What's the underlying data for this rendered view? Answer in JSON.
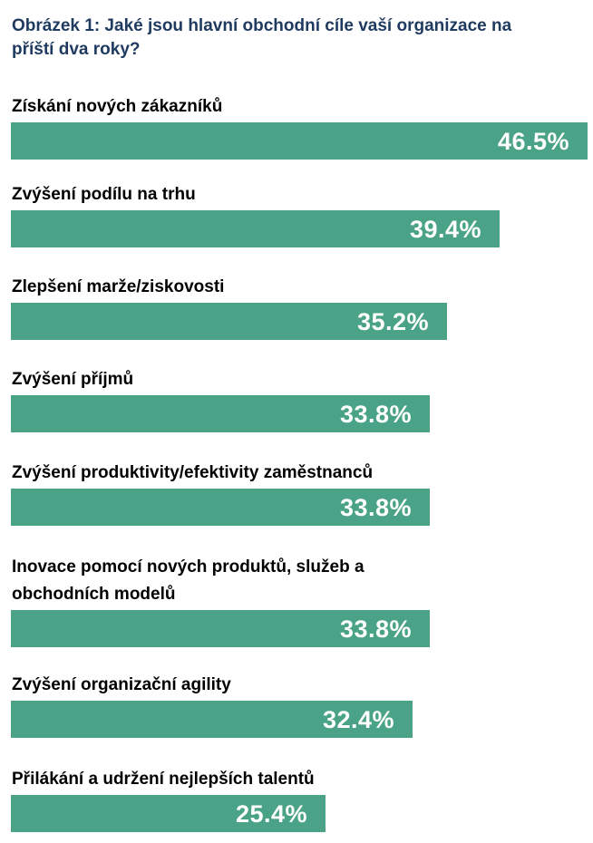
{
  "chart_data": {
    "type": "bar",
    "orientation": "horizontal",
    "title": "Obrázek 1: Jaké jsou hlavní obchodní cíle vaší organizace na příští dva roky?",
    "categories": [
      "Získání nových zákazníků",
      "Zvýšení podílu na trhu",
      "Zlepšení marže/ziskovosti",
      "Zvýšení příjmů",
      "Zvýšení produktivity/efektivity zaměstnanců",
      "Inovace pomocí nových produktů, služeb a obchodních modelů",
      "Zvýšení organizační agility",
      "Přilákání a udržení nejlepších talentů"
    ],
    "values": [
      46.5,
      39.4,
      35.2,
      33.8,
      33.8,
      33.8,
      32.4,
      25.4
    ],
    "value_labels": [
      "46.5%",
      "39.4%",
      "35.2%",
      "33.8%",
      "33.8%",
      "33.8%",
      "32.4%",
      "25.4%"
    ],
    "unit": "%",
    "bar_color": "#4aa386",
    "title_color": "#1f3a5f",
    "label_color": "#000000",
    "value_text_color": "#ffffff",
    "grid": false,
    "legend": "none"
  }
}
